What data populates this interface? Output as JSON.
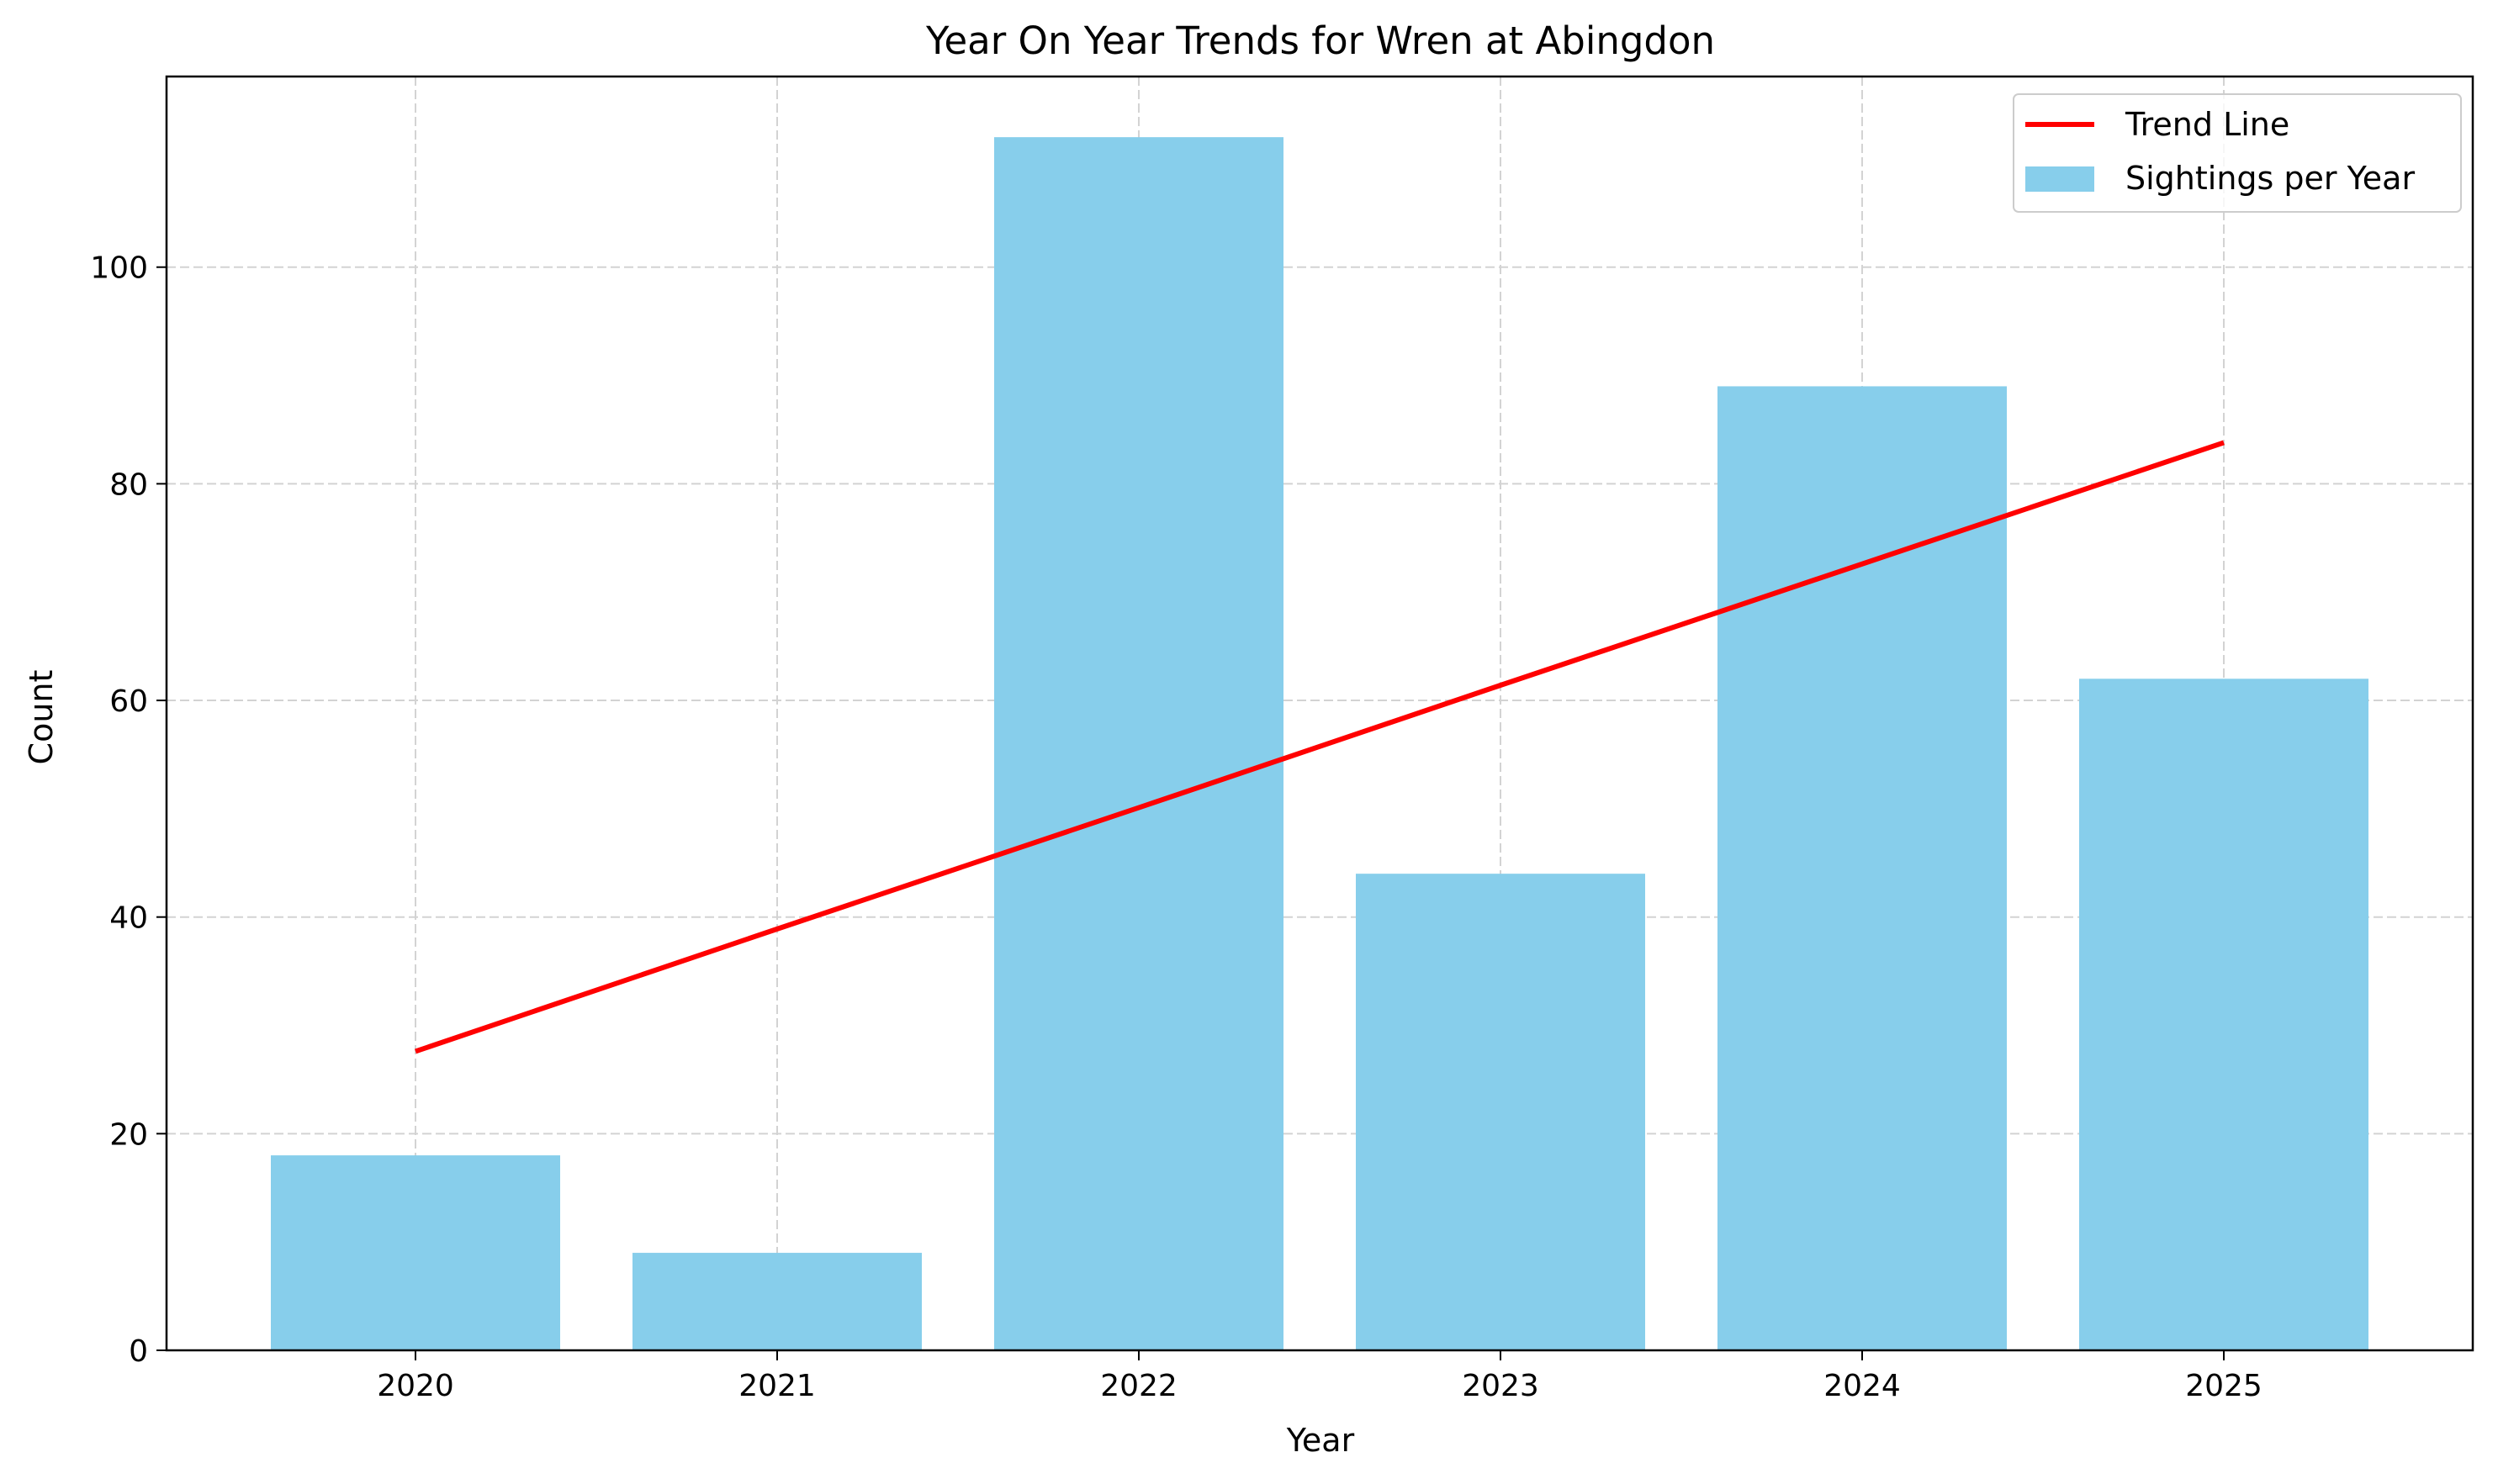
{
  "chart_data": {
    "type": "bar",
    "title": "Year On Year Trends for Wren at Abingdon",
    "xlabel": "Year",
    "ylabel": "Count",
    "categories": [
      "2020",
      "2021",
      "2022",
      "2023",
      "2024",
      "2025"
    ],
    "series": [
      {
        "name": "Sightings per Year",
        "type": "bar",
        "color": "#87CEEB",
        "values": [
          18,
          9,
          112,
          44,
          89,
          62
        ]
      },
      {
        "name": "Trend Line",
        "type": "line",
        "color": "#FF0000",
        "values": [
          27.6,
          38.9,
          50.1,
          61.4,
          72.6,
          83.8
        ]
      }
    ],
    "ylim": [
      0,
      117.6
    ],
    "yticks": [
      0,
      20,
      40,
      60,
      80,
      100
    ],
    "grid": true,
    "legend": "upper right"
  }
}
